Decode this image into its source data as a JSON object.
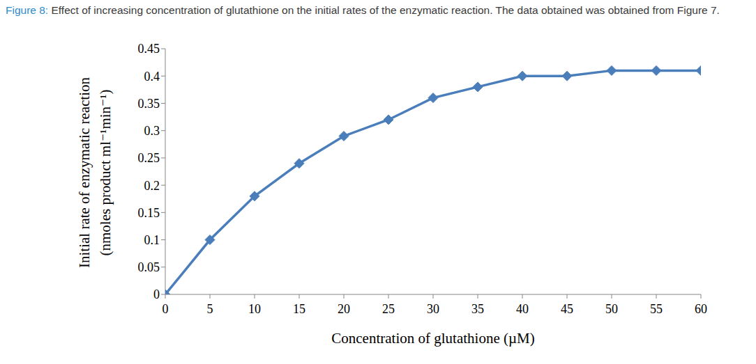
{
  "chart_data": {
    "type": "line",
    "title": "Figure 8: Effect of increasing concentration of glutathione on the initial rates of the enzymatic reaction. The data obtained was obtained from Figure 7.",
    "x_label": "Concentration of glutathione (µM)",
    "y_label": [
      "Initial rate of enzymatic reaction",
      "(nmoles product ml⁻¹min⁻¹)"
    ],
    "x": [
      0,
      5,
      10,
      15,
      20,
      25,
      30,
      35,
      40,
      45,
      50,
      55,
      60
    ],
    "values": [
      0,
      0.1,
      0.18,
      0.24,
      0.29,
      0.32,
      0.36,
      0.38,
      0.4,
      0.4,
      0.41,
      0.41,
      0.41
    ],
    "color": "#4a7ebb",
    "marker": "diamond",
    "xlim": [
      0,
      60
    ],
    "xticks": [
      0,
      5,
      10,
      15,
      20,
      25,
      30,
      35,
      40,
      45,
      50,
      55,
      60
    ],
    "ylim": [
      0,
      0.45
    ],
    "yticks": [
      0,
      0.05,
      0.1,
      0.15,
      0.2,
      0.25,
      0.3,
      0.35,
      0.4,
      0.45
    ],
    "grid": false
  }
}
